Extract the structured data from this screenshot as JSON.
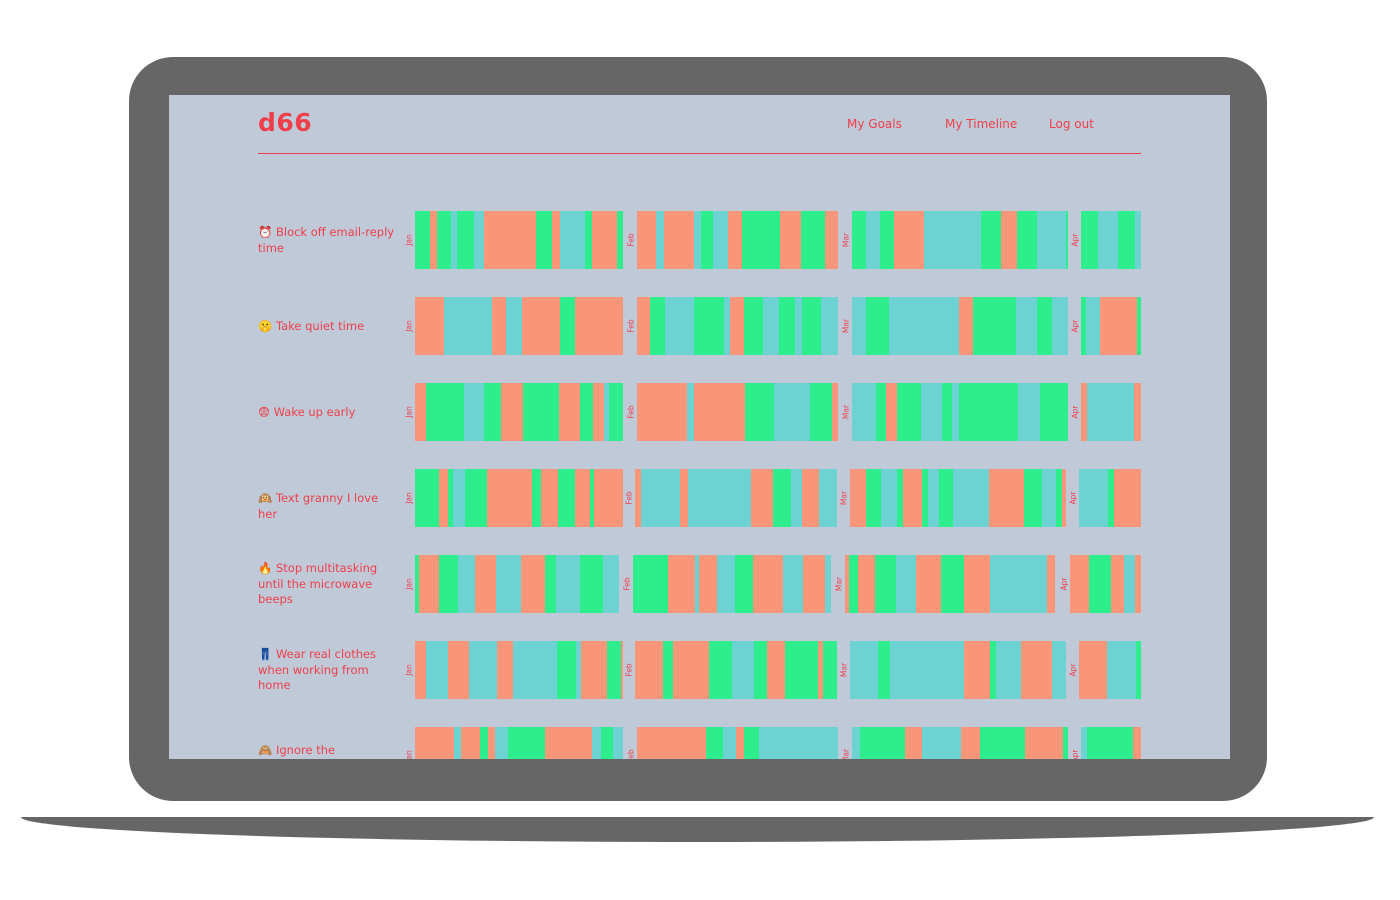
{
  "app": {
    "logo": "d66",
    "nav": [
      {
        "label": "My Goals"
      },
      {
        "label": "My Timeline"
      },
      {
        "label": "Log out"
      }
    ]
  },
  "months": [
    "Jan",
    "Feb",
    "Mar",
    "Apr"
  ],
  "colors": {
    "coral": "#f9967a",
    "green": "#2ded8c",
    "teal": "#6cd2d2",
    "accent": "#ef3f4a",
    "screen_bg": "#c0c9d8",
    "device": "#666666"
  },
  "goals": [
    {
      "icon": "⏰",
      "icon_name": "alarm-clock-icon",
      "label": "Block off email-reply time"
    },
    {
      "icon": "🤫",
      "icon_name": "shushing-face-icon",
      "label": "Take quiet time"
    },
    {
      "icon": "😨",
      "icon_name": "fearful-face-icon",
      "label": "Wake up early"
    },
    {
      "icon": "🙉",
      "icon_name": "hear-no-evil-monkey-icon",
      "label": "Text granny I love her"
    },
    {
      "icon": "🔥",
      "icon_name": "fire-icon",
      "label": "Stop multitasking until the microwave beeps"
    },
    {
      "icon": "👖",
      "icon_name": "jeans-icon",
      "label": "Wear real clothes when working from home"
    },
    {
      "icon": "🙈",
      "icon_name": "see-no-evil-monkey-icon",
      "label": "Ignore the"
    }
  ]
}
